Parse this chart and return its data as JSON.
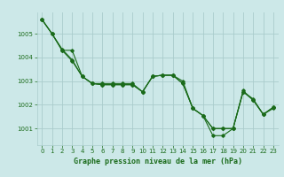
{
  "title": "Graphe pression niveau de la mer (hPa)",
  "bg_color": "#cce8e8",
  "grid_color": "#aacccc",
  "line_color": "#1a6b1a",
  "xlim": [
    -0.5,
    23.5
  ],
  "ylim": [
    1000.3,
    1005.9
  ],
  "yticks": [
    1001,
    1002,
    1003,
    1004,
    1005
  ],
  "xticks": [
    0,
    1,
    2,
    3,
    4,
    5,
    6,
    7,
    8,
    9,
    10,
    11,
    12,
    13,
    14,
    15,
    16,
    17,
    18,
    19,
    20,
    21,
    22,
    23
  ],
  "series": [
    [
      1005.6,
      1005.0,
      1004.3,
      1003.85,
      1003.2,
      1002.9,
      1002.9,
      1002.9,
      1002.9,
      1002.9,
      1002.55,
      1003.2,
      1003.25,
      1003.25,
      1002.9,
      1001.85,
      1001.55,
      1001.0,
      1001.0,
      1001.0,
      1002.55,
      1002.25,
      1001.6,
      1001.85
    ],
    [
      1005.6,
      1005.0,
      1004.3,
      1004.3,
      1003.2,
      1002.9,
      1002.85,
      1002.85,
      1002.85,
      1002.85,
      1002.55,
      1003.2,
      1003.25,
      1003.25,
      1003.0,
      1001.85,
      1001.55,
      1001.0,
      1001.0,
      1001.0,
      1002.55,
      1002.2,
      1001.6,
      1001.9
    ],
    [
      1005.6,
      1005.0,
      1004.35,
      1003.9,
      1003.2,
      1002.9,
      1002.85,
      1002.85,
      1002.85,
      1002.85,
      1002.55,
      1003.2,
      1003.25,
      1003.25,
      1002.9,
      1001.85,
      1001.55,
      1000.7,
      1000.7,
      1001.0,
      1002.6,
      1002.2,
      1001.6,
      1001.9
    ]
  ],
  "title_fontsize": 6,
  "tick_fontsize": 5
}
